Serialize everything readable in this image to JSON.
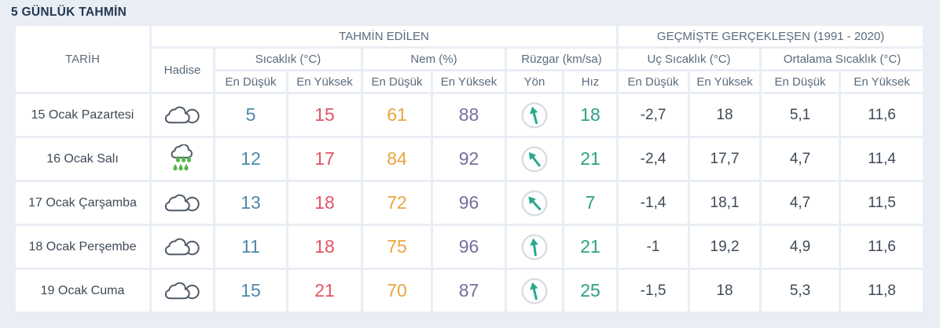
{
  "page": {
    "title": "5 GÜNLÜK TAHMİN"
  },
  "colors": {
    "page_bg": "#e9eef4",
    "panel_bg": "#ffffff",
    "title_text": "#223750",
    "header_text": "#5a6c7d",
    "date_text": "#3e4a57",
    "min_temp": "#4d89a8",
    "max_temp": "#e35463",
    "humidity_min": "#e7a640",
    "humidity_max": "#756fa0",
    "wind_speed": "#2ea085",
    "wind_arrow": "#29a88e",
    "historical_text": "#3e4a57",
    "cloud_stroke": "#515a68",
    "rain_drop": "#55b54c",
    "circle_border": "#d8dde2"
  },
  "table": {
    "group_headers": {
      "forecast": "TAHMİN EDİLEN",
      "historical": "GEÇMİŞTE GERÇEKLEŞEN (1991 - 2020)"
    },
    "columns": {
      "date": "TARİH",
      "condition": "Hadise",
      "temperature": "Sıcaklık (°C)",
      "humidity": "Nem (%)",
      "wind": "Rüzgar (km/sa)",
      "extreme_temp": "Uç Sıcaklık (°C)",
      "avg_temp": "Ortalama Sıcaklık (°C)",
      "min": "En Düşük",
      "max": "En Yüksek",
      "direction": "Yön",
      "speed": "Hız"
    },
    "rows": [
      {
        "date": "15 Ocak Pazartesi",
        "icon": "cloudy",
        "temp_min": "5",
        "temp_max": "15",
        "humidity_min": "61",
        "humidity_max": "88",
        "wind_dir_deg": -15,
        "wind_speed": "18",
        "ext_min": "-2,7",
        "ext_max": "18",
        "avg_min": "5,1",
        "avg_max": "11,6"
      },
      {
        "date": "16 Ocak Salı",
        "icon": "rainy",
        "temp_min": "12",
        "temp_max": "17",
        "humidity_min": "84",
        "humidity_max": "92",
        "wind_dir_deg": -38,
        "wind_speed": "21",
        "ext_min": "-2,4",
        "ext_max": "17,7",
        "avg_min": "4,7",
        "avg_max": "11,4"
      },
      {
        "date": "17 Ocak Çarşamba",
        "icon": "cloudy",
        "temp_min": "13",
        "temp_max": "18",
        "humidity_min": "72",
        "humidity_max": "96",
        "wind_dir_deg": -42,
        "wind_speed": "7",
        "ext_min": "-1,4",
        "ext_max": "18,1",
        "avg_min": "4,7",
        "avg_max": "11,5"
      },
      {
        "date": "18 Ocak Perşembe",
        "icon": "cloudy",
        "temp_min": "11",
        "temp_max": "18",
        "humidity_min": "75",
        "humidity_max": "96",
        "wind_dir_deg": -8,
        "wind_speed": "21",
        "ext_min": "-1",
        "ext_max": "19,2",
        "avg_min": "4,9",
        "avg_max": "11,6"
      },
      {
        "date": "19 Ocak Cuma",
        "icon": "cloudy",
        "temp_min": "15",
        "temp_max": "21",
        "humidity_min": "70",
        "humidity_max": "87",
        "wind_dir_deg": -13,
        "wind_speed": "25",
        "ext_min": "-1,5",
        "ext_max": "18",
        "avg_min": "5,3",
        "avg_max": "11,8"
      }
    ]
  }
}
